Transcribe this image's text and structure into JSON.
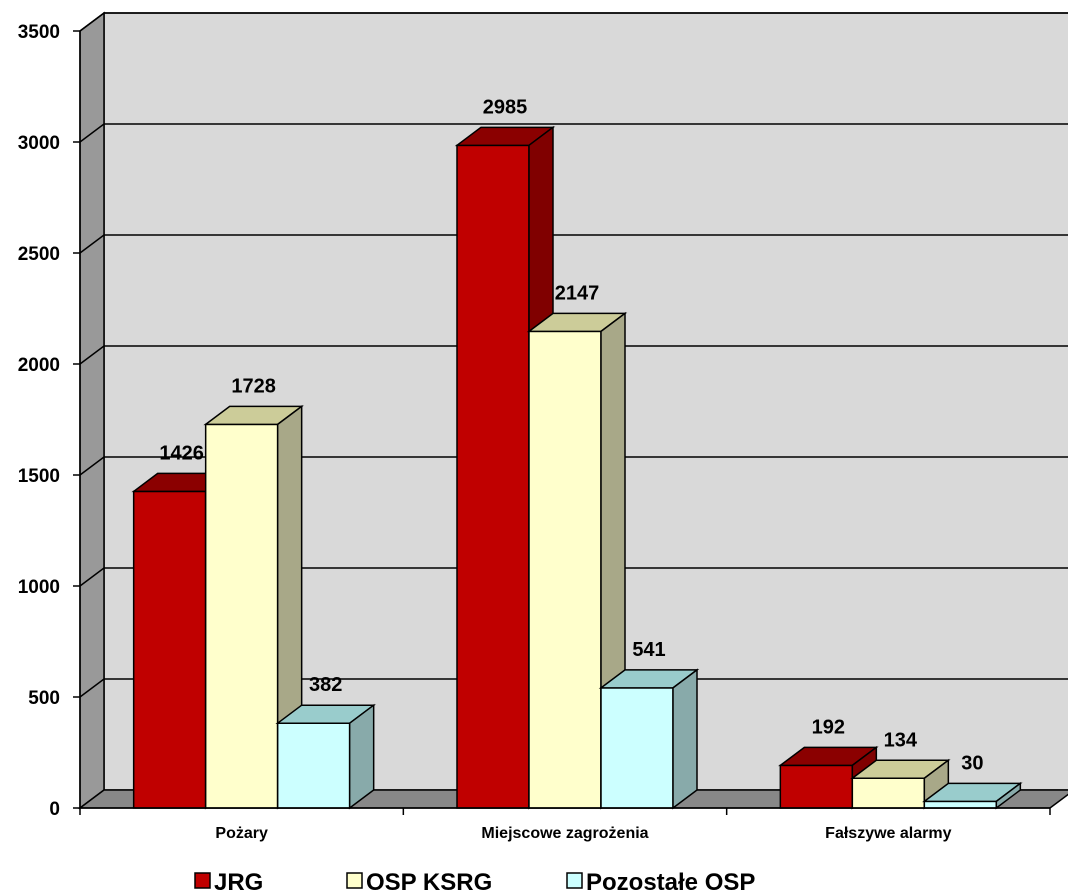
{
  "chart_data": {
    "type": "bar",
    "title": "",
    "xlabel": "",
    "ylabel": "",
    "ylim": [
      0,
      3500
    ],
    "yticks": [
      0,
      500,
      1000,
      1500,
      2000,
      2500,
      3000,
      3500
    ],
    "grid": true,
    "three_d": true,
    "legend_position": "bottom",
    "categories": [
      "Pożary",
      "Miejscowe zagrożenia",
      "Fałszywe alarmy"
    ],
    "series": [
      {
        "name": "JRG",
        "values": [
          1426,
          2985,
          192
        ],
        "label_values": [
          "1426",
          "2985",
          "192"
        ],
        "color": "#c00000",
        "top_color": "#8b0000",
        "side_color": "#800000"
      },
      {
        "name": "OSP KSRG",
        "values": [
          1728,
          2147,
          134
        ],
        "label_values": [
          "1728",
          "2147",
          "134"
        ],
        "color": "#ffffcc",
        "top_color": "#cccc99",
        "side_color": "#a8a888"
      },
      {
        "name": "Pozostałe OSP",
        "values": [
          382,
          541,
          30
        ],
        "label_values": [
          "382",
          "541",
          "30"
        ],
        "color": "#ccffff",
        "top_color": "#99cccc",
        "side_color": "#88aaaa"
      }
    ],
    "colors": {
      "wall": "#d9d9d9",
      "side_wall": "#999999",
      "floor": "#888888",
      "gridline": "#000000"
    }
  }
}
